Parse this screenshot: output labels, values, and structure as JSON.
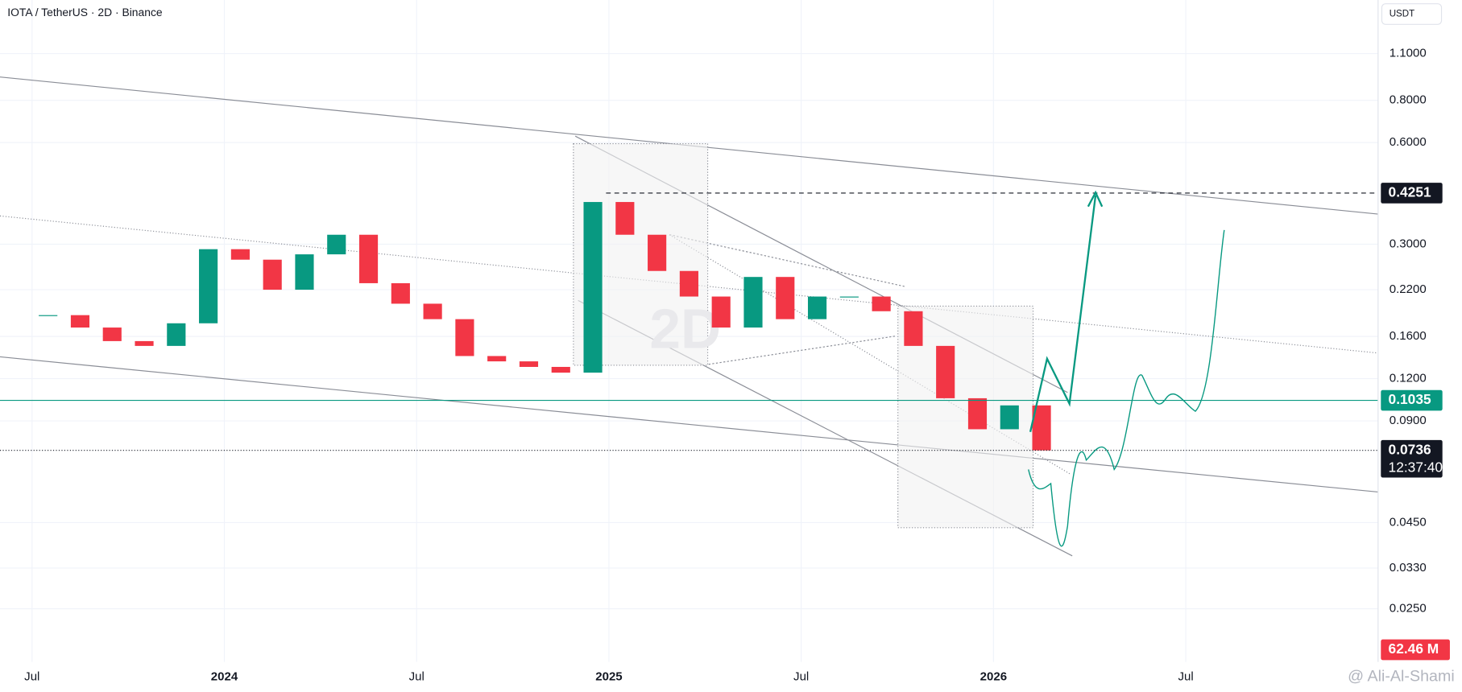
{
  "header": {
    "symbol": "IOTA / TetherUS · 2D · Binance",
    "currency": "USDT"
  },
  "chart_data": {
    "type": "candlestick",
    "x": [
      "2023-07",
      "2023-08",
      "2023-09",
      "2023-10",
      "2023-11",
      "2023-12",
      "2024-01",
      "2024-02",
      "2024-03",
      "2024-04",
      "2024-05",
      "2024-06",
      "2024-07",
      "2024-08",
      "2024-09",
      "2024-10",
      "2024-11",
      "2024-12",
      "2025-01",
      "2025-02",
      "2025-03",
      "2025-04",
      "2025-05",
      "2025-06",
      "2025-07",
      "2025-08",
      "2025-09",
      "2025-10",
      "2025-11",
      "2025-12",
      "2026-01",
      "2026-02"
    ],
    "values": [
      0.185,
      0.17,
      0.155,
      0.15,
      0.175,
      0.29,
      0.27,
      0.22,
      0.28,
      0.32,
      0.23,
      0.2,
      0.18,
      0.14,
      0.135,
      0.13,
      0.125,
      0.4,
      0.32,
      0.25,
      0.21,
      0.17,
      0.24,
      0.18,
      0.21,
      0.21,
      0.19,
      0.15,
      0.105,
      0.085,
      0.1,
      0.0736
    ],
    "up_color": "#089981",
    "down_color": "#f23645",
    "log_scale": true,
    "ylim": [
      0.0174,
      1.585
    ],
    "yticks": [
      {
        "value": 1.1,
        "label": "1.1000"
      },
      {
        "value": 0.8,
        "label": "0.8000"
      },
      {
        "value": 0.6,
        "label": "0.6000"
      },
      {
        "value": 0.3,
        "label": "0.3000"
      },
      {
        "value": 0.22,
        "label": "0.2200"
      },
      {
        "value": 0.16,
        "label": "0.1600"
      },
      {
        "value": 0.12,
        "label": "0.1200"
      },
      {
        "value": 0.09,
        "label": "0.0900"
      },
      {
        "value": 0.045,
        "label": "0.0450"
      },
      {
        "value": 0.033,
        "label": "0.0330"
      },
      {
        "value": 0.025,
        "label": "0.0250"
      }
    ],
    "xlim": [
      "2023-06",
      "2027-01"
    ],
    "xticks": [
      {
        "value": "2023-07",
        "label": "Jul"
      },
      {
        "value": "2024-01",
        "label": "2024"
      },
      {
        "value": "2024-07",
        "label": "Jul"
      },
      {
        "value": "2025-01",
        "label": "2025"
      },
      {
        "value": "2025-07",
        "label": "Jul"
      },
      {
        "value": "2026-01",
        "label": "2026"
      },
      {
        "value": "2026-07",
        "label": "Jul"
      }
    ],
    "grid": true,
    "price_badges": [
      {
        "value": 0.4251,
        "color": "#131722"
      },
      {
        "value": 0.1035,
        "color": "#089981"
      },
      {
        "value": 0.0736,
        "color": "#131722"
      }
    ],
    "countdown": "12:37:40",
    "volume_badge": "62.46 M"
  },
  "watermark": {
    "interval": "2D",
    "author": "@ Ali-Al-Shami"
  }
}
